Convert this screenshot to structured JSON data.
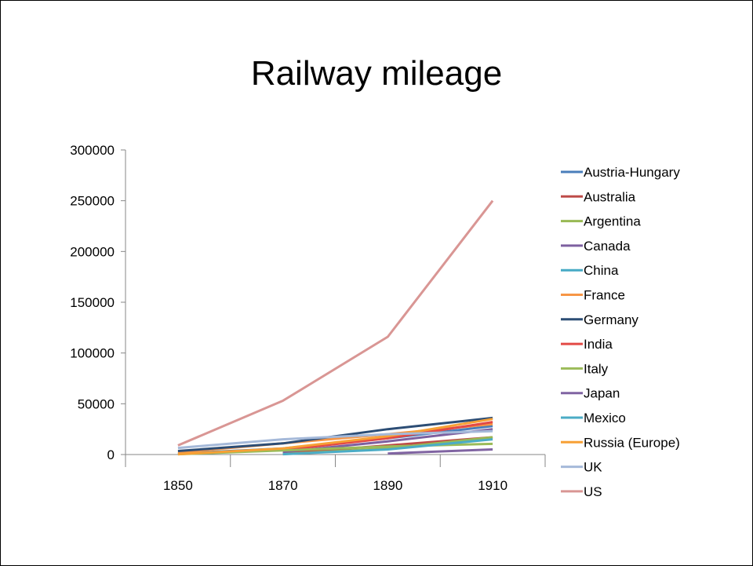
{
  "slide": {
    "title": "Railway mileage"
  },
  "chart_data": {
    "type": "line",
    "title": "Railway mileage",
    "x": [
      "1850",
      "1870",
      "1890",
      "1910"
    ],
    "ylim": [
      0,
      300000
    ],
    "yticks": [
      0,
      50000,
      100000,
      150000,
      200000,
      250000,
      300000
    ],
    "ytick_labels": [
      "0",
      "50000",
      "100000",
      "150000",
      "200000",
      "250000",
      "300000"
    ],
    "grid": false,
    "legend_position": "right",
    "series": [
      {
        "name": "Austria-Hungary",
        "color": "#4a7ebb",
        "values": [
          1000,
          6000,
          16000,
          28000
        ]
      },
      {
        "name": "Australia",
        "color": "#be4b48",
        "values": [
          null,
          1000,
          9000,
          17000
        ]
      },
      {
        "name": "Argentina",
        "color": "#98b954",
        "values": [
          null,
          500,
          6000,
          17000
        ]
      },
      {
        "name": "Canada",
        "color": "#7d60a0",
        "values": [
          null,
          2500,
          13000,
          25000
        ]
      },
      {
        "name": "China",
        "color": "#46aac5",
        "values": [
          null,
          null,
          null,
          5000
        ]
      },
      {
        "name": "France",
        "color": "#f79646",
        "values": [
          2000,
          11000,
          20000,
          30000
        ]
      },
      {
        "name": "Germany",
        "color": "#2c4d75",
        "values": [
          3500,
          11000,
          25000,
          36000
        ]
      },
      {
        "name": "India",
        "color": "#e34a46",
        "values": [
          null,
          4500,
          16000,
          32000
        ]
      },
      {
        "name": "Italy",
        "color": "#9bbb59",
        "values": [
          300,
          4000,
          8000,
          10500
        ]
      },
      {
        "name": "Japan",
        "color": "#8064a2",
        "values": [
          null,
          null,
          1000,
          5000
        ]
      },
      {
        "name": "Mexico",
        "color": "#4bacc6",
        "values": [
          null,
          300,
          5000,
          15000
        ]
      },
      {
        "name": "Russia (Europe)",
        "color": "#f7a035",
        "values": [
          300,
          6000,
          18000,
          35000
        ]
      },
      {
        "name": "UK",
        "color": "#a5b9d9",
        "values": [
          6500,
          15000,
          20000,
          23000
        ]
      },
      {
        "name": "US",
        "color": "#d99694",
        "values": [
          9000,
          53000,
          116000,
          250000
        ]
      }
    ]
  }
}
